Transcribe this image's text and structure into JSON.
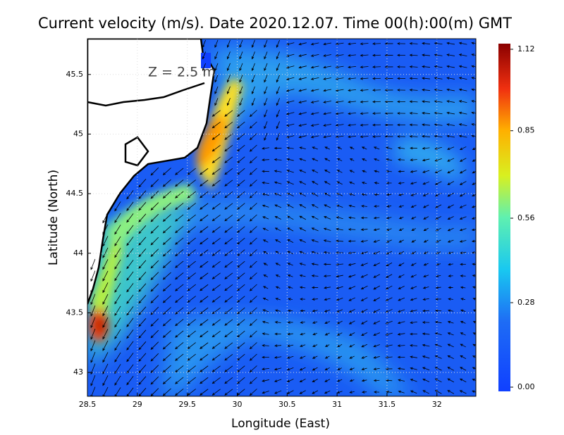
{
  "map": {
    "title": "Current velocity (m/s). Date 2020.12.07. Time 00(h):00(m) GMT",
    "annotation": "Z = 2.5 m",
    "xlabel": "Longitude (East)",
    "ylabel": "Latitude (North)",
    "xlim": [
      28.5,
      32.39
    ],
    "ylim": [
      42.8,
      45.8
    ],
    "xticks": [
      28.5,
      29,
      29.5,
      30,
      30.5,
      31,
      31.5,
      32
    ],
    "yticks": [
      43,
      43.5,
      44,
      44.5,
      45,
      45.5
    ],
    "grid": true,
    "colorbar": {
      "lim": [
        0,
        1.12
      ],
      "ticks": [
        {
          "value": 0,
          "label": "0.00"
        },
        0.28,
        0.56,
        0.85,
        1.12
      ]
    }
  }
}
